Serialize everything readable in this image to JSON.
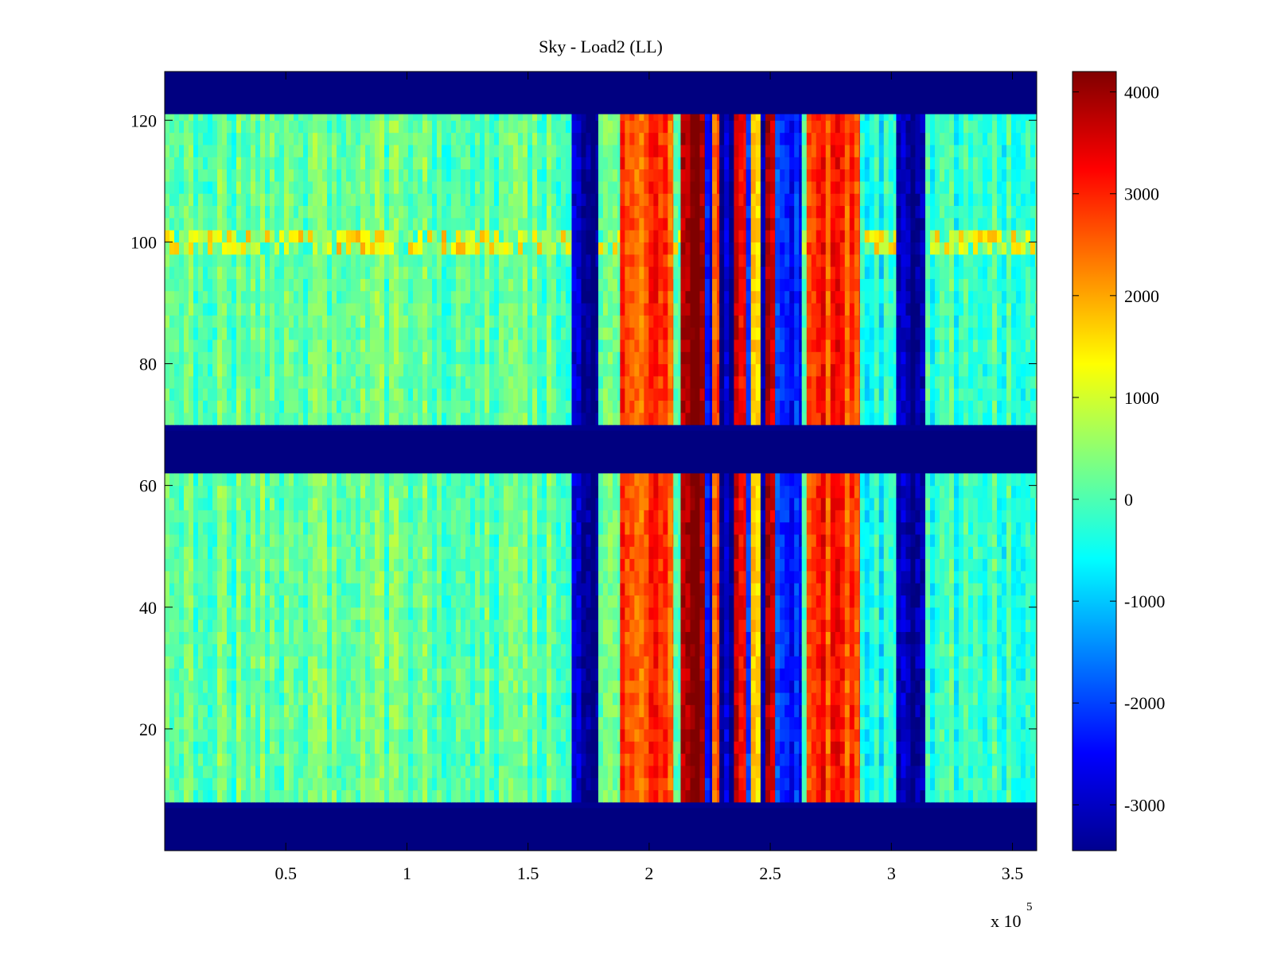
{
  "chart_data": {
    "type": "heatmap",
    "title": "Sky - Load2 (LL)",
    "xlabel": "",
    "ylabel": "",
    "x_range": [
      0,
      360000
    ],
    "y_range": [
      0,
      128
    ],
    "x_ticks": [
      50000,
      100000,
      150000,
      200000,
      250000,
      300000,
      350000
    ],
    "x_tick_labels": [
      "0.5",
      "1",
      "1.5",
      "2",
      "2.5",
      "3",
      "3.5"
    ],
    "x_exponent_label": "x 10",
    "x_exponent": "5",
    "y_ticks": [
      20,
      40,
      60,
      80,
      100,
      120
    ],
    "y_tick_labels": [
      "20",
      "40",
      "60",
      "80",
      "100",
      "120"
    ],
    "colorbar": {
      "colormap": "jet",
      "range": [
        -3450,
        4200
      ],
      "ticks": [
        -3000,
        -2000,
        -1000,
        0,
        1000,
        2000,
        3000,
        4000
      ],
      "tick_labels": [
        "-3000",
        "-2000",
        "-1000",
        "0",
        "1000",
        "2000",
        "3000",
        "4000"
      ]
    },
    "masked_row_bands": [
      [
        0,
        7
      ],
      [
        62,
        69
      ],
      [
        121,
        128
      ]
    ],
    "masked_value": -3450,
    "column_bands": [
      {
        "x": [
          0,
          168000
        ],
        "value": 150
      },
      {
        "x": [
          168000,
          179000
        ],
        "value": -3200
      },
      {
        "x": [
          179000,
          188000
        ],
        "value": 250
      },
      {
        "x": [
          188000,
          210000
        ],
        "value": 2800
      },
      {
        "x": [
          210000,
          213000
        ],
        "value": 0
      },
      {
        "x": [
          213000,
          223000
        ],
        "value": 4100
      },
      {
        "x": [
          223000,
          226000
        ],
        "value": -2500
      },
      {
        "x": [
          226000,
          229000
        ],
        "value": 2500
      },
      {
        "x": [
          229000,
          235000
        ],
        "value": -3000
      },
      {
        "x": [
          235000,
          240000
        ],
        "value": 3600
      },
      {
        "x": [
          240000,
          242000
        ],
        "value": -2000
      },
      {
        "x": [
          242000,
          246000
        ],
        "value": 1500
      },
      {
        "x": [
          246000,
          248000
        ],
        "value": -2800
      },
      {
        "x": [
          248000,
          252000
        ],
        "value": 3800
      },
      {
        "x": [
          252000,
          263000
        ],
        "value": -2300
      },
      {
        "x": [
          263000,
          265000
        ],
        "value": 0
      },
      {
        "x": [
          265000,
          287000
        ],
        "value": 2900
      },
      {
        "x": [
          287000,
          302000
        ],
        "value": -500
      },
      {
        "x": [
          302000,
          314000
        ],
        "value": -3200
      },
      {
        "x": [
          314000,
          360000
        ],
        "value": -200
      }
    ],
    "row_band_100": {
      "y": [
        98,
        101
      ],
      "value": 800
    }
  }
}
